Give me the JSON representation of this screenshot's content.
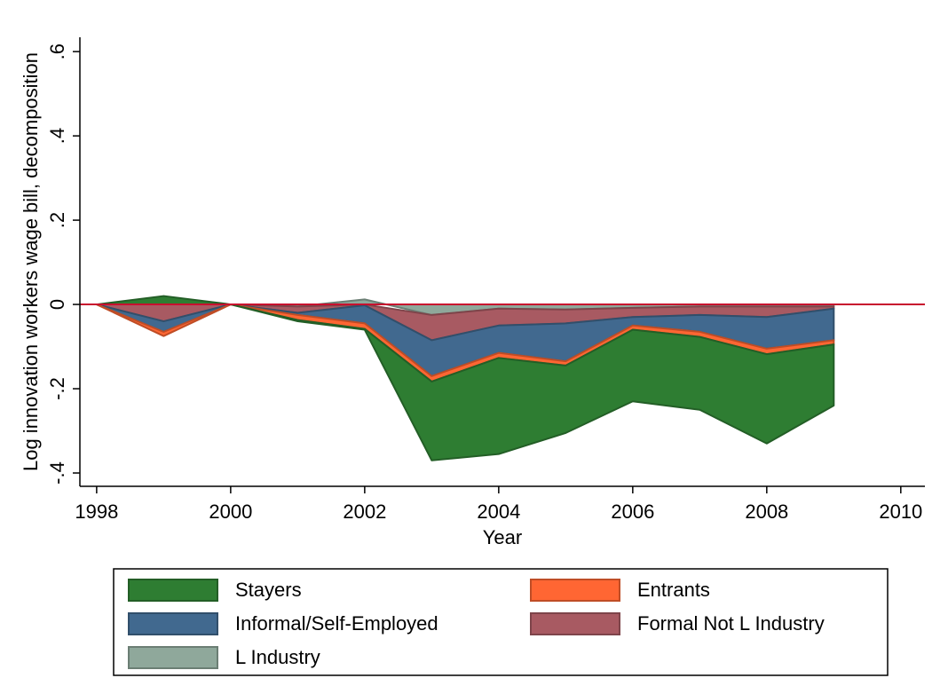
{
  "chart_data": {
    "type": "stacked_area",
    "y_label": "Log innovation workers wage bill, decomposition",
    "x_label": "Year",
    "x": [
      1998,
      1999,
      2000,
      2001,
      2002,
      2003,
      2004,
      2005,
      2006,
      2007,
      2008,
      2009
    ],
    "series": [
      {
        "name": "Stayers",
        "color": "#2e7d32",
        "values": [
          0,
          0.02,
          0,
          -0.003,
          -0.002,
          -0.187,
          -0.228,
          -0.16,
          -0.17,
          -0.173,
          -0.212,
          -0.145
        ]
      },
      {
        "name": "Entrants",
        "color": "#ff6633",
        "values": [
          0,
          -0.01,
          0,
          -0.012,
          -0.013,
          -0.013,
          -0.012,
          -0.01,
          -0.01,
          -0.012,
          -0.013,
          -0.01
        ]
      },
      {
        "name": "Informal/Self-Employed",
        "color": "#41698f",
        "values": [
          0,
          -0.025,
          0,
          -0.005,
          -0.043,
          -0.085,
          -0.065,
          -0.09,
          -0.02,
          -0.04,
          -0.075,
          -0.075
        ]
      },
      {
        "name": "Formal Not L Industry",
        "color": "#a85a62",
        "values": [
          0,
          -0.04,
          0,
          -0.015,
          -0.002,
          -0.06,
          -0.04,
          -0.033,
          -0.022,
          -0.02,
          -0.025,
          -0.005
        ]
      },
      {
        "name": "L Industry",
        "color": "#8fa89b",
        "values": [
          0,
          0,
          0,
          -0.005,
          0.012,
          -0.025,
          -0.01,
          -0.012,
          -0.008,
          -0.005,
          -0.005,
          -0.005
        ]
      }
    ],
    "xlim": [
      1997.75,
      2010.36
    ],
    "xticks": [
      1998,
      2000,
      2002,
      2004,
      2006,
      2008,
      2010
    ],
    "ylim": [
      -0.4316,
      0.634
    ],
    "yticks": [
      {
        "value": -0.4,
        "label": "-.4"
      },
      {
        "value": -0.2,
        "label": "-.2"
      },
      0,
      {
        "value": 0.2,
        "label": ".2"
      },
      {
        "value": 0.4,
        "label": ".4"
      },
      {
        "value": 0.6,
        "label": ".6"
      }
    ],
    "zero_line": true,
    "zero_line_color": "#c8102e"
  }
}
